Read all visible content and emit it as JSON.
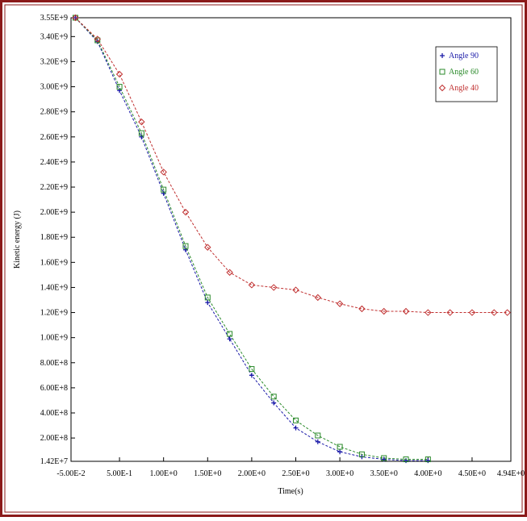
{
  "chart_data": {
    "type": "line",
    "xlabel": "Time(s)",
    "ylabel": "Kinetic energy (J)",
    "xlim": [
      -0.05,
      4.94
    ],
    "xticks": [
      {
        "value": -0.05,
        "label": "-5.00E-2"
      },
      {
        "value": 0.5,
        "label": "5.00E-1"
      },
      {
        "value": 1,
        "label": "1.00E+0"
      },
      {
        "value": 1.5,
        "label": "1.50E+0"
      },
      {
        "value": 2,
        "label": "2.00E+0"
      },
      {
        "value": 2.5,
        "label": "2.50E+0"
      },
      {
        "value": 3,
        "label": "3.00E+0"
      },
      {
        "value": 3.5,
        "label": "3.50E+0"
      },
      {
        "value": 4,
        "label": "4.00E+0"
      },
      {
        "value": 4.5,
        "label": "4.50E+0"
      },
      {
        "value": 4.94,
        "label": "4.94E+0"
      }
    ],
    "ylim": [
      14200000,
      3550000000
    ],
    "yticks": [
      {
        "value": 14200000,
        "label": "1.42E+7"
      },
      {
        "value": 200000000,
        "label": "2.00E+8"
      },
      {
        "value": 400000000,
        "label": "4.00E+8"
      },
      {
        "value": 600000000,
        "label": "6.00E+8"
      },
      {
        "value": 800000000,
        "label": "8.00E+8"
      },
      {
        "value": 1000000000,
        "label": "1.00E+9"
      },
      {
        "value": 1200000000,
        "label": "1.20E+9"
      },
      {
        "value": 1400000000,
        "label": "1.40E+9"
      },
      {
        "value": 1600000000,
        "label": "1.60E+9"
      },
      {
        "value": 1800000000,
        "label": "1.80E+9"
      },
      {
        "value": 2000000000,
        "label": "2.00E+9"
      },
      {
        "value": 2200000000,
        "label": "2.20E+9"
      },
      {
        "value": 2400000000,
        "label": "2.40E+9"
      },
      {
        "value": 2600000000,
        "label": "2.60E+9"
      },
      {
        "value": 2800000000,
        "label": "2.80E+9"
      },
      {
        "value": 3000000000,
        "label": "3.00E+9"
      },
      {
        "value": 3200000000,
        "label": "3.20E+9"
      },
      {
        "value": 3400000000,
        "label": "3.40E+9"
      },
      {
        "value": 3550000000,
        "label": "3.55E+9"
      }
    ],
    "legend": "upper right",
    "series": [
      {
        "name": "Angle 90",
        "color": "#1a1aa8",
        "marker": "plus",
        "x": [
          0,
          0.25,
          0.5,
          0.75,
          1,
          1.25,
          1.5,
          1.75,
          2,
          2.25,
          2.5,
          2.75,
          3,
          3.25,
          3.5,
          3.75,
          4
        ],
        "values": [
          3550000000.0,
          3360000000.0,
          2970000000.0,
          2600000000.0,
          2150000000.0,
          1700000000.0,
          1280000000.0,
          990000000.0,
          700000000.0,
          480000000.0,
          280000000.0,
          170000000.0,
          90000000.0,
          50000000.0,
          30000000.0,
          20000000.0,
          20000000.0
        ]
      },
      {
        "name": "Angle 60",
        "color": "#2a8a2a",
        "marker": "square",
        "x": [
          0,
          0.25,
          0.5,
          0.75,
          1,
          1.25,
          1.5,
          1.75,
          2,
          2.25,
          2.5,
          2.75,
          3,
          3.25,
          3.5,
          3.75,
          4
        ],
        "values": [
          3550000000.0,
          3370000000.0,
          3000000000.0,
          2630000000.0,
          2180000000.0,
          1730000000.0,
          1320000000.0,
          1030000000.0,
          750000000.0,
          530000000.0,
          340000000.0,
          220000000.0,
          130000000.0,
          70000000.0,
          40000000.0,
          30000000.0,
          30000000.0
        ]
      },
      {
        "name": "Angle 40",
        "color": "#c03030",
        "marker": "diamond",
        "x": [
          0,
          0.25,
          0.5,
          0.75,
          1,
          1.25,
          1.5,
          1.75,
          2,
          2.25,
          2.5,
          2.75,
          3,
          3.25,
          3.5,
          3.75,
          4,
          4.25,
          4.5,
          4.75,
          4.9
        ],
        "values": [
          3550000000.0,
          3380000000.0,
          3100000000.0,
          2720000000.0,
          2320000000.0,
          2000000000.0,
          1720000000.0,
          1520000000.0,
          1420000000.0,
          1400000000.0,
          1380000000.0,
          1320000000.0,
          1270000000.0,
          1230000000.0,
          1210000000.0,
          1210000000.0,
          1200000000.0,
          1200000000.0,
          1200000000.0,
          1200000000.0,
          1200000000.0
        ]
      }
    ]
  }
}
